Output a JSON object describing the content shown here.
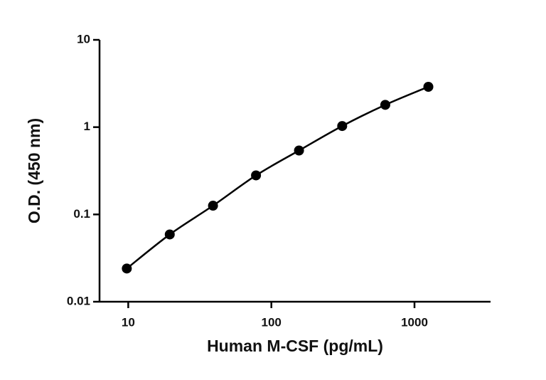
{
  "chart_data": {
    "type": "scatter",
    "x_label": "Human M-CSF (pg/mL)",
    "y_label": "O.D. (450 nm)",
    "x_scale": "log",
    "y_scale": "log",
    "xlim": [
      6.3,
      3400
    ],
    "ylim": [
      0.01,
      10
    ],
    "xticks": [
      10,
      100,
      1000
    ],
    "yticks": [
      0.01,
      0.1,
      1,
      10
    ],
    "color": "#000000",
    "curve": true,
    "x": [
      9.77,
      19.5,
      39.1,
      78.1,
      156,
      312.5,
      625,
      1250
    ],
    "values": [
      0.024,
      0.059,
      0.126,
      0.28,
      0.54,
      1.03,
      1.8,
      2.9
    ]
  }
}
